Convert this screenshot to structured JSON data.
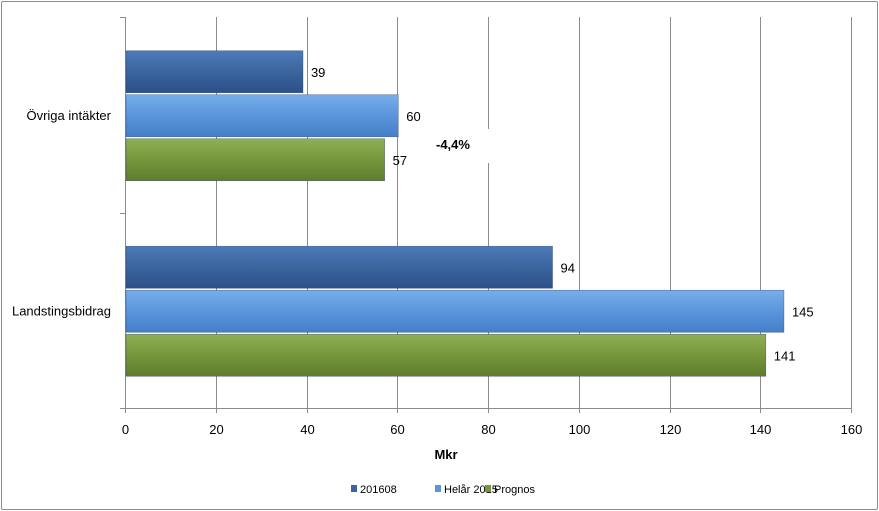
{
  "chart_data": {
    "type": "bar",
    "orientation": "horizontal",
    "categories": [
      "Övriga intäkter",
      "Landstingsbidrag"
    ],
    "series": [
      {
        "name": "201608",
        "values": [
          39,
          94
        ],
        "color": "#3a659e"
      },
      {
        "name": "Helår 2015",
        "values": [
          60,
          145
        ],
        "color": "#5a95dc"
      },
      {
        "name": "Prognos",
        "values": [
          57,
          141
        ],
        "color": "#76963c"
      }
    ],
    "xlabel": "Mkr",
    "xlim": [
      0,
      160
    ],
    "xticks": [
      "0",
      "20",
      "40",
      "60",
      "80",
      "100",
      "120",
      "140",
      "160"
    ],
    "grid": "vertical",
    "legend": "bottom",
    "annotations": [
      {
        "text": "-4,4%"
      }
    ]
  }
}
